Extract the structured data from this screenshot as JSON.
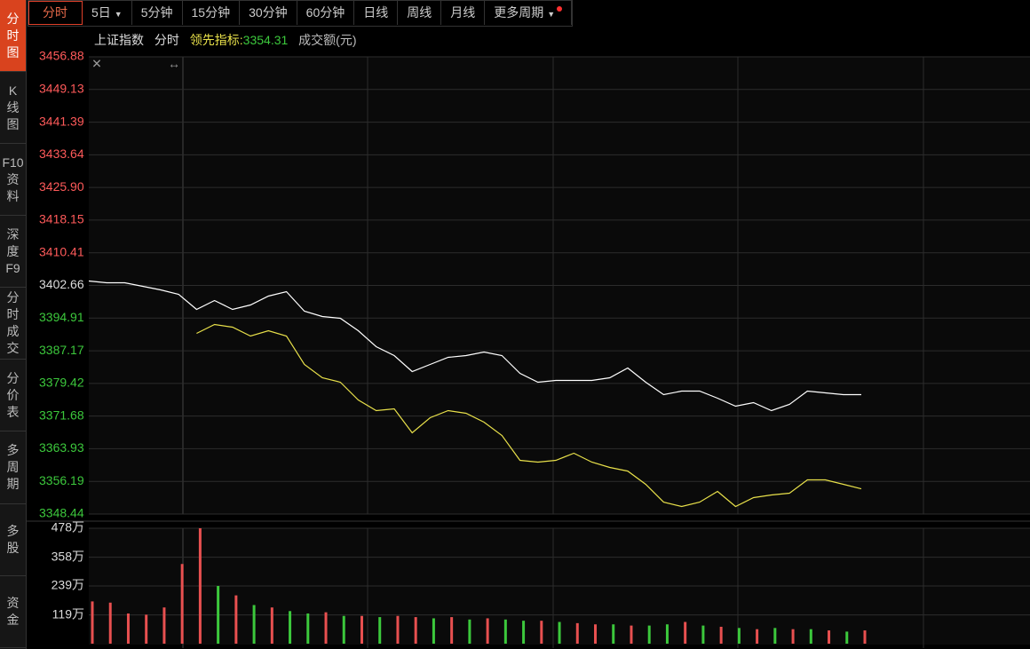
{
  "sidebar": [
    "分时图",
    "K线图",
    "F10资料",
    "深度F9",
    "分时成交",
    "分价表",
    "多周期",
    "多股",
    "资金"
  ],
  "tabs": [
    "分时",
    "5日",
    "5分钟",
    "15分钟",
    "30分钟",
    "60分钟",
    "日线",
    "周线",
    "月线",
    "更多周期"
  ],
  "header": {
    "name": "上证指数",
    "mode": "分时",
    "lead_label": "领先指标:",
    "lead_value": 3354.31,
    "volume_label": "成交额(元)"
  },
  "chart_data": [
    {
      "type": "line",
      "base_value": 3402.66,
      "ylim": [
        3348.44,
        3456.88
      ],
      "yticks": [
        3456.88,
        3449.13,
        3441.39,
        3433.64,
        {
          "value": 3425.9,
          "label": "3425.90"
        },
        3418.15,
        3410.41,
        3402.66,
        3394.91,
        3387.17,
        3379.42,
        3371.68,
        3363.93,
        3356.19,
        3348.44
      ],
      "series": [
        {
          "color": "#ffffff",
          "values": [
            3403.71,
            3403.29,
            3403.29,
            3402.45,
            3401.61,
            3400.55,
            3396.97,
            3399.08,
            3396.97,
            3398.03,
            3400.13,
            3401.19,
            3396.55,
            3395.29,
            3394.87,
            3391.92,
            3388.13,
            3386.02,
            3382.23,
            3383.92,
            3385.6,
            3386.02,
            3386.87,
            3386.02,
            3381.81,
            3379.71,
            3380.13,
            3380.13,
            3380.13,
            3380.76,
            3383.07,
            3379.71,
            3376.76,
            3377.6,
            3377.6,
            3375.91,
            3374.02,
            3374.86,
            3372.97,
            3374.44,
            3377.6,
            3377.18,
            3376.76,
            3376.76
          ]
        },
        {
          "color": "#e8e04a",
          "values": [
            null,
            null,
            null,
            null,
            null,
            null,
            3391.29,
            3393.39,
            3392.76,
            3390.66,
            3391.92,
            3390.66,
            3383.92,
            3380.76,
            3379.71,
            3375.49,
            3372.97,
            3373.39,
            3367.7,
            3371.28,
            3372.97,
            3372.33,
            3370.23,
            3367.07,
            3361.17,
            3360.75,
            3361.17,
            3362.86,
            3360.75,
            3359.49,
            3358.64,
            3355.49,
            3351.27,
            3350.22,
            3351.27,
            3353.8,
            3350.22,
            3352.33,
            3352.96,
            3353.38,
            3356.54,
            3356.54,
            3355.49,
            3354.43
          ]
        }
      ]
    },
    {
      "type": "bar",
      "ylim": [
        0,
        478
      ],
      "yticks": [
        {
          "value": 478,
          "label": "478万"
        },
        {
          "value": 358,
          "label": "358万"
        },
        {
          "value": 239,
          "label": "239万"
        },
        {
          "value": 119,
          "label": "119万"
        }
      ],
      "values": [
        175,
        170,
        125,
        120,
        150,
        330,
        478,
        239,
        200,
        160,
        150,
        135,
        125,
        130,
        115,
        115,
        110,
        115,
        110,
        105,
        110,
        100,
        105,
        100,
        95,
        95,
        90,
        85,
        80,
        80,
        75,
        75,
        80,
        90,
        75,
        70,
        65,
        60,
        65,
        60,
        60,
        55,
        50,
        55
      ],
      "colors": [
        "#e85050",
        "#e85050",
        "#e85050",
        "#e85050",
        "#e85050",
        "#e85050",
        "#e85050",
        "#3cc83c",
        "#e85050",
        "#3cc83c",
        "#e85050",
        "#3cc83c",
        "#3cc83c",
        "#e85050",
        "#3cc83c",
        "#e85050",
        "#3cc83c",
        "#e85050",
        "#e85050",
        "#3cc83c",
        "#e85050",
        "#3cc83c",
        "#e85050",
        "#3cc83c",
        "#3cc83c",
        "#e85050",
        "#3cc83c",
        "#e85050",
        "#e85050",
        "#3cc83c",
        "#e85050",
        "#3cc83c",
        "#3cc83c",
        "#e85050",
        "#3cc83c",
        "#e85050",
        "#3cc83c",
        "#e85050",
        "#3cc83c",
        "#e85050",
        "#3cc83c",
        "#e85050",
        "#3cc83c",
        "#e85050"
      ]
    }
  ]
}
